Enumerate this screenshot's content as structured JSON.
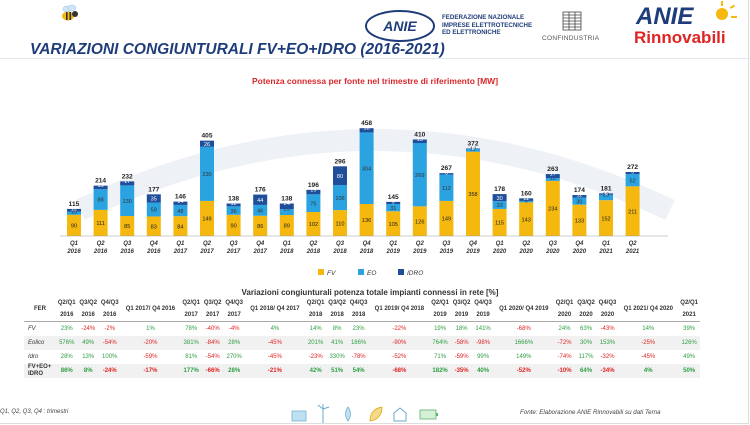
{
  "header": {
    "title": "VARIAZIONI CONGIUNTURALI FV+EO+IDRO (2016-2021)",
    "anie_logo_text": "ANIE",
    "federation_lines": [
      "FEDERAZIONE NAZIONALE",
      "IMPRESE ELETTROTECNICHE",
      "ED ELETTRONICHE"
    ],
    "confindustria": "CONFINDUSTRIA",
    "brand_anie": "ANIE",
    "brand_rinnovabili": "Rinnovabili"
  },
  "chart_data": {
    "type": "bar",
    "stacked": true,
    "title": "Potenza connessa per fonte nel trimestre di riferimento [MW]",
    "categories": [
      "Q1 2016",
      "Q2 2016",
      "Q3 2016",
      "Q4 2016",
      "Q1 2017",
      "Q2 2017",
      "Q3 2017",
      "Q4 2017",
      "Q1 2018",
      "Q2 2018",
      "Q3 2018",
      "Q4 2018",
      "Q1 2019",
      "Q2 2019",
      "Q3 2019",
      "Q4 2019",
      "Q1 2020",
      "Q2 2020",
      "Q3 2020",
      "Q4 2020",
      "Q1 2021",
      "Q2 2021"
    ],
    "quarter_labels": [
      "Q1",
      "Q2",
      "Q3",
      "Q4",
      "Q1",
      "Q2",
      "Q3",
      "Q4",
      "Q1",
      "Q2",
      "Q3",
      "Q4",
      "Q1",
      "Q2",
      "Q3",
      "Q4",
      "Q1",
      "Q2",
      "Q3",
      "Q4",
      "Q1",
      "Q2"
    ],
    "year_labels": [
      "2016",
      "2016",
      "2016",
      "2016",
      "2017",
      "2017",
      "2017",
      "2017",
      "2018",
      "2018",
      "2018",
      "2018",
      "2019",
      "2019",
      "2019",
      "2019",
      "2020",
      "2020",
      "2020",
      "2020",
      "2021",
      "2021"
    ],
    "series": [
      {
        "name": "FV",
        "color": "#f5b80f",
        "values": [
          90,
          111,
          85,
          83,
          84,
          149,
          90,
          86,
          89,
          102,
          110,
          136,
          105,
          126,
          149,
          358,
          115,
          143,
          234,
          133,
          152,
          211
        ]
      },
      {
        "name": "EO",
        "color": "#2aa3e0",
        "values": [
          13,
          88,
          130,
          59,
          48,
          230,
          36,
          46,
          25,
          75,
          106,
          304,
          31,
          269,
          112,
          12,
          33,
          6,
          12,
          30,
          23,
          52
        ]
      },
      {
        "name": "IDRO",
        "color": "#1f4e9a",
        "values": [
          12,
          15,
          17,
          35,
          14,
          26,
          12,
          44,
          24,
          19,
          80,
          18,
          9,
          15,
          6,
          2,
          30,
          11,
          17,
          11,
          6,
          9
        ]
      }
    ],
    "totals": [
      115,
      214,
      232,
      177,
      146,
      405,
      138,
      176,
      138,
      196,
      296,
      458,
      145,
      410,
      267,
      372,
      178,
      160,
      263,
      174,
      181,
      272
    ],
    "ylim": [
      0,
      480
    ],
    "legend_position": "bottom"
  },
  "table": {
    "title": "Variazioni congiunturali potenza totale impianti connessi in rete [%]",
    "row_header": "FER",
    "column_top": [
      "Q2/Q1",
      "Q3/Q2",
      "Q4/Q3",
      "Q1 2017/ Q4 2016",
      "Q2/Q1",
      "Q3/Q2",
      "Q4/Q3",
      "Q1 2018/ Q4 2017",
      "Q2/Q1",
      "Q3/Q2",
      "Q4/Q3",
      "Q1 2019/ Q4 2018",
      "Q2/Q1",
      "Q3/Q2",
      "Q4/Q3",
      "Q1 2020/ Q4 2019",
      "Q2/Q1",
      "Q3/Q2",
      "Q4/Q3",
      "Q1 2021/ Q4 2020",
      "Q2/Q1"
    ],
    "column_year": [
      "2016",
      "2016",
      "2016",
      "",
      "2017",
      "2017",
      "2017",
      "",
      "2018",
      "2018",
      "2018",
      "",
      "2019",
      "2019",
      "2019",
      "",
      "2020",
      "2020",
      "2020",
      "",
      "2021"
    ],
    "rows": [
      {
        "label": "FV",
        "bold": false,
        "values": [
          "23%",
          "-24%",
          "-2%",
          "1%",
          "78%",
          "-40%",
          "-4%",
          "4%",
          "14%",
          "8%",
          "23%",
          "-22%",
          "19%",
          "18%",
          "141%",
          "-68%",
          "24%",
          "63%",
          "-43%",
          "14%",
          "39%"
        ]
      },
      {
        "label": "Eolico",
        "bold": false,
        "values": [
          "576%",
          "49%",
          "-54%",
          "-20%",
          "381%",
          "-84%",
          "28%",
          "-45%",
          "201%",
          "41%",
          "186%",
          "-90%",
          "764%",
          "-58%",
          "-98%",
          "1666%",
          "-72%",
          "30%",
          "153%",
          "-25%",
          "126%"
        ]
      },
      {
        "label": "Idro",
        "bold": false,
        "values": [
          "28%",
          "13%",
          "100%",
          "-59%",
          "81%",
          "-54%",
          "270%",
          "-45%",
          "-23%",
          "330%",
          "-78%",
          "-52%",
          "71%",
          "-59%",
          "99%",
          "149%",
          "-74%",
          "117%",
          "-32%",
          "-45%",
          "49%"
        ]
      },
      {
        "label": "FV+EO+ IDRO",
        "bold": true,
        "values": [
          "86%",
          "8%",
          "-24%",
          "-17%",
          "177%",
          "-66%",
          "28%",
          "-21%",
          "42%",
          "51%",
          "54%",
          "-68%",
          "182%",
          "-35%",
          "40%",
          "-52%",
          "-10%",
          "64%",
          "-34%",
          "4%",
          "50%"
        ]
      }
    ]
  },
  "footer": {
    "footnote": "Q1, Q2, Q3, Q4 : trimestri",
    "source": "Fonte: Elaborazione ANIE Rinnovabili su dati Terna"
  }
}
